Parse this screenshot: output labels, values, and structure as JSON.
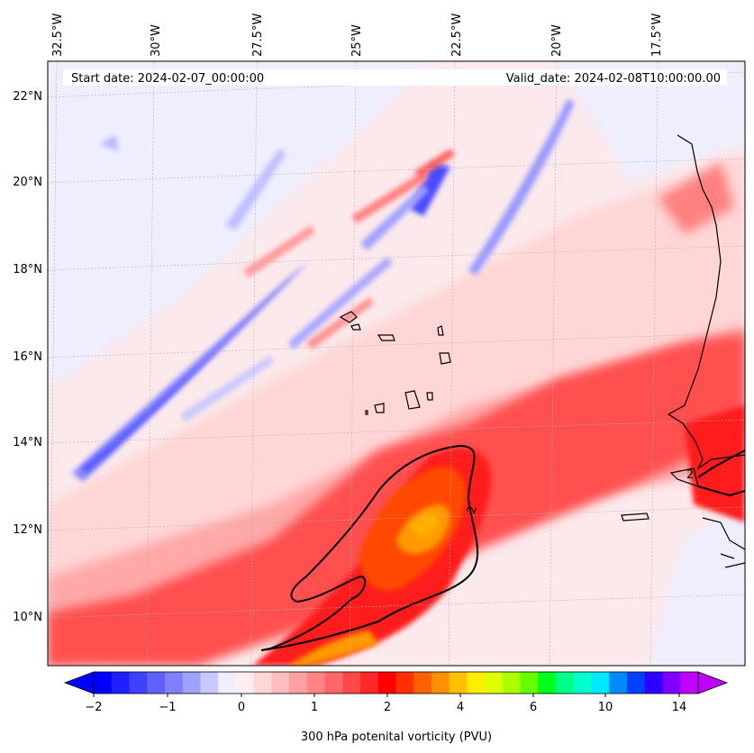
{
  "header": {
    "start_date": "Start date: 2024-02-07_00:00:00",
    "valid_date": "Valid_date: 2024-02-08T10:00:00.00"
  },
  "map": {
    "lon_labels": [
      "32.5°W",
      "30°W",
      "27.5°W",
      "25°W",
      "22.5°W",
      "20°W",
      "17.5°W"
    ],
    "lat_labels": [
      "22°N",
      "20°N",
      "18°N",
      "16°N",
      "14°N",
      "12°N",
      "10°N"
    ],
    "contour_label": "2",
    "region": "Cape Verde and West African coast, 300 hPa"
  },
  "colorbar": {
    "ticks": [
      "−2",
      "−1",
      "0",
      "1",
      "2",
      "4",
      "6",
      "10",
      "14"
    ],
    "label": "300 hPa potenital vorticity (PVU)",
    "colors": [
      "#0000ff",
      "#2020ff",
      "#4040ff",
      "#6060ff",
      "#8080ff",
      "#a0a0ff",
      "#c8c8ff",
      "#eeeeff",
      "#ffeeee",
      "#ffd6d6",
      "#ffbcbc",
      "#ffa0a0",
      "#ff8484",
      "#ff6868",
      "#ff4848",
      "#ff2828",
      "#ff0000",
      "#ff3000",
      "#ff6000",
      "#ff9000",
      "#ffc000",
      "#ffee00",
      "#ddff00",
      "#aaff00",
      "#66ff00",
      "#00ff20",
      "#00ff88",
      "#00ffcc",
      "#00e8ff",
      "#0088ff",
      "#0040ff",
      "#3000ff",
      "#8000ff",
      "#c000ff"
    ]
  }
}
